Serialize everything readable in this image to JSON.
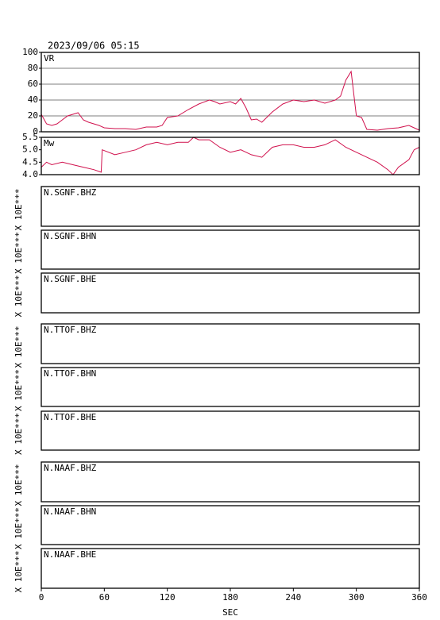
{
  "title": "2023/09/06 05:15",
  "chart_data": [
    {
      "type": "line",
      "label": "VR",
      "color": "#d0104c",
      "grid": true,
      "xlim": [
        0,
        360
      ],
      "ylim": [
        0,
        100
      ],
      "yticks": [
        0,
        20,
        40,
        60,
        80,
        100
      ],
      "x": [
        0,
        5,
        10,
        15,
        20,
        25,
        30,
        35,
        40,
        45,
        50,
        55,
        60,
        70,
        80,
        90,
        100,
        110,
        115,
        120,
        130,
        140,
        150,
        160,
        165,
        170,
        180,
        185,
        190,
        195,
        200,
        205,
        210,
        220,
        230,
        240,
        250,
        260,
        270,
        280,
        285,
        290,
        295,
        300,
        305,
        310,
        320,
        330,
        340,
        350,
        355,
        360
      ],
      "values": [
        22,
        10,
        8,
        10,
        15,
        20,
        22,
        24,
        15,
        12,
        10,
        8,
        5,
        4,
        4,
        3,
        6,
        6,
        8,
        18,
        20,
        28,
        35,
        40,
        38,
        35,
        38,
        35,
        42,
        30,
        15,
        16,
        12,
        25,
        35,
        40,
        38,
        40,
        36,
        40,
        45,
        65,
        76,
        20,
        18,
        3,
        2,
        4,
        5,
        8,
        5,
        2
      ]
    },
    {
      "type": "line",
      "label": "Mw",
      "color": "#d0104c",
      "grid": false,
      "xlim": [
        0,
        360
      ],
      "ylim": [
        4.0,
        5.5
      ],
      "yticks": [
        {
          "value": 4.0,
          "label": "4.0"
        },
        4.5,
        {
          "value": 5.0,
          "label": "5.0"
        },
        5.5
      ],
      "x": [
        0,
        5,
        10,
        20,
        30,
        40,
        50,
        57,
        58,
        70,
        80,
        90,
        100,
        110,
        120,
        130,
        140,
        145,
        150,
        160,
        170,
        180,
        190,
        200,
        210,
        220,
        230,
        240,
        250,
        260,
        270,
        280,
        290,
        300,
        310,
        320,
        330,
        335,
        340,
        350,
        355,
        360
      ],
      "values": [
        4.3,
        4.5,
        4.4,
        4.5,
        4.4,
        4.3,
        4.2,
        4.1,
        5.0,
        4.8,
        4.9,
        5.0,
        5.2,
        5.3,
        5.2,
        5.3,
        5.3,
        5.5,
        5.4,
        5.4,
        5.1,
        4.9,
        5.0,
        4.8,
        4.7,
        5.1,
        5.2,
        5.2,
        5.1,
        5.1,
        5.2,
        5.4,
        5.1,
        4.9,
        4.7,
        4.5,
        4.2,
        4.0,
        4.3,
        4.6,
        5.0,
        5.1
      ]
    }
  ],
  "x_axis": {
    "xlim": [
      0,
      360
    ],
    "xticks": [
      0,
      60,
      120,
      180,
      240,
      300,
      360
    ],
    "label": "SEC"
  },
  "panels": [
    {
      "label": "N.SGNF.BHZ",
      "axis_label": "X 10E***"
    },
    {
      "label": "N.SGNF.BHN",
      "axis_label": "X 10E***"
    },
    {
      "label": "N.SGNF.BHE",
      "axis_label": "X 10E***"
    },
    {
      "label": "N.TTOF.BHZ",
      "axis_label": "X 10E***"
    },
    {
      "label": "N.TTOF.BHN",
      "axis_label": "X 10E***"
    },
    {
      "label": "N.TTOF.BHE",
      "axis_label": "X 10E***"
    },
    {
      "label": "N.NAAF.BHZ",
      "axis_label": "X 10E***"
    },
    {
      "label": "N.NAAF.BHN",
      "axis_label": "X 10E***"
    },
    {
      "label": "N.NAAF.BHE",
      "axis_label": "X 10E***"
    }
  ]
}
